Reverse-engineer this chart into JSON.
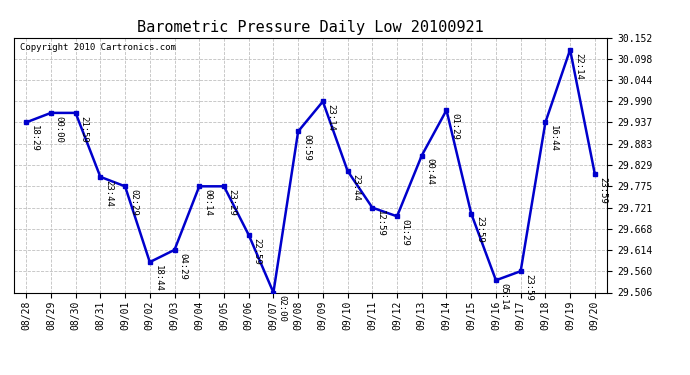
{
  "title": "Barometric Pressure Daily Low 20100921",
  "copyright": "Copyright 2010 Cartronics.com",
  "x_labels": [
    "08/28",
    "08/29",
    "08/30",
    "08/31",
    "09/01",
    "09/02",
    "09/03",
    "09/04",
    "09/05",
    "09/06",
    "09/07",
    "09/08",
    "09/09",
    "09/10",
    "09/11",
    "09/12",
    "09/13",
    "09/14",
    "09/15",
    "09/16",
    "09/17",
    "09/18",
    "09/19",
    "09/20"
  ],
  "x_values": [
    0,
    1,
    2,
    3,
    4,
    5,
    6,
    7,
    8,
    9,
    10,
    11,
    12,
    13,
    14,
    15,
    16,
    17,
    18,
    19,
    20,
    21,
    22,
    23
  ],
  "y_values": [
    29.937,
    29.961,
    29.961,
    29.799,
    29.775,
    29.583,
    29.614,
    29.775,
    29.775,
    29.652,
    29.506,
    29.914,
    29.99,
    29.814,
    29.721,
    29.699,
    29.853,
    29.968,
    29.706,
    29.537,
    29.56,
    29.937,
    30.121,
    29.806
  ],
  "point_labels": [
    "18:29",
    "00:00",
    "21:59",
    "23:44",
    "02:29",
    "18:44",
    "04:29",
    "00:14",
    "23:29",
    "22:59",
    "02:00",
    "00:59",
    "23:14",
    "23:44",
    "12:59",
    "01:29",
    "00:44",
    "01:29",
    "23:59",
    "05:14",
    "23:59",
    "16:44",
    "22:14",
    "23:59"
  ],
  "ylim_min": 29.506,
  "ylim_max": 30.152,
  "yticks": [
    29.506,
    29.56,
    29.614,
    29.668,
    29.721,
    29.775,
    29.829,
    29.883,
    29.937,
    29.99,
    30.044,
    30.098,
    30.152
  ],
  "line_color": "#0000cc",
  "marker_color": "#0000cc",
  "background_color": "#ffffff",
  "grid_color": "#c0c0c0",
  "title_fontsize": 11,
  "copyright_fontsize": 6.5,
  "tick_fontsize": 7,
  "point_label_fontsize": 6.5
}
